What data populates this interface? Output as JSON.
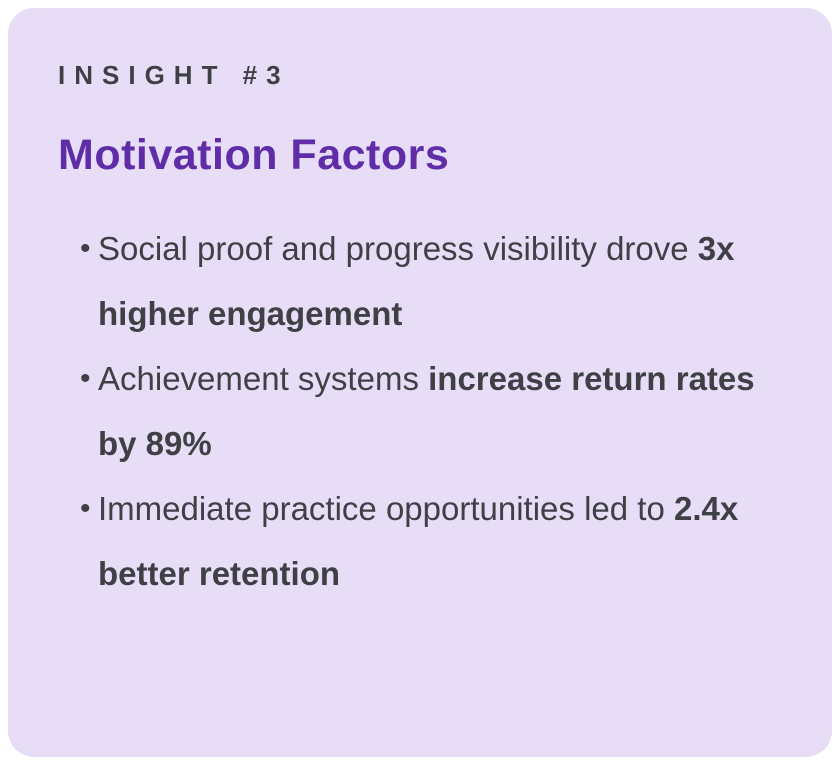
{
  "card": {
    "eyebrow": "INSIGHT #3",
    "title": "Motivation Factors",
    "bullet_glyph": "•",
    "bullets": [
      {
        "normal": "Social proof and progress visibility drove ",
        "bold": "3x higher engagement"
      },
      {
        "normal": "Achievement systems ",
        "bold": "increase return rates by 89%"
      },
      {
        "normal": "Immediate practice opportunities led to ",
        "bold": "2.4x better retention"
      }
    ],
    "colors": {
      "background": "#e7ddf6",
      "title": "#5f2da8",
      "text": "#3f3f46"
    }
  }
}
